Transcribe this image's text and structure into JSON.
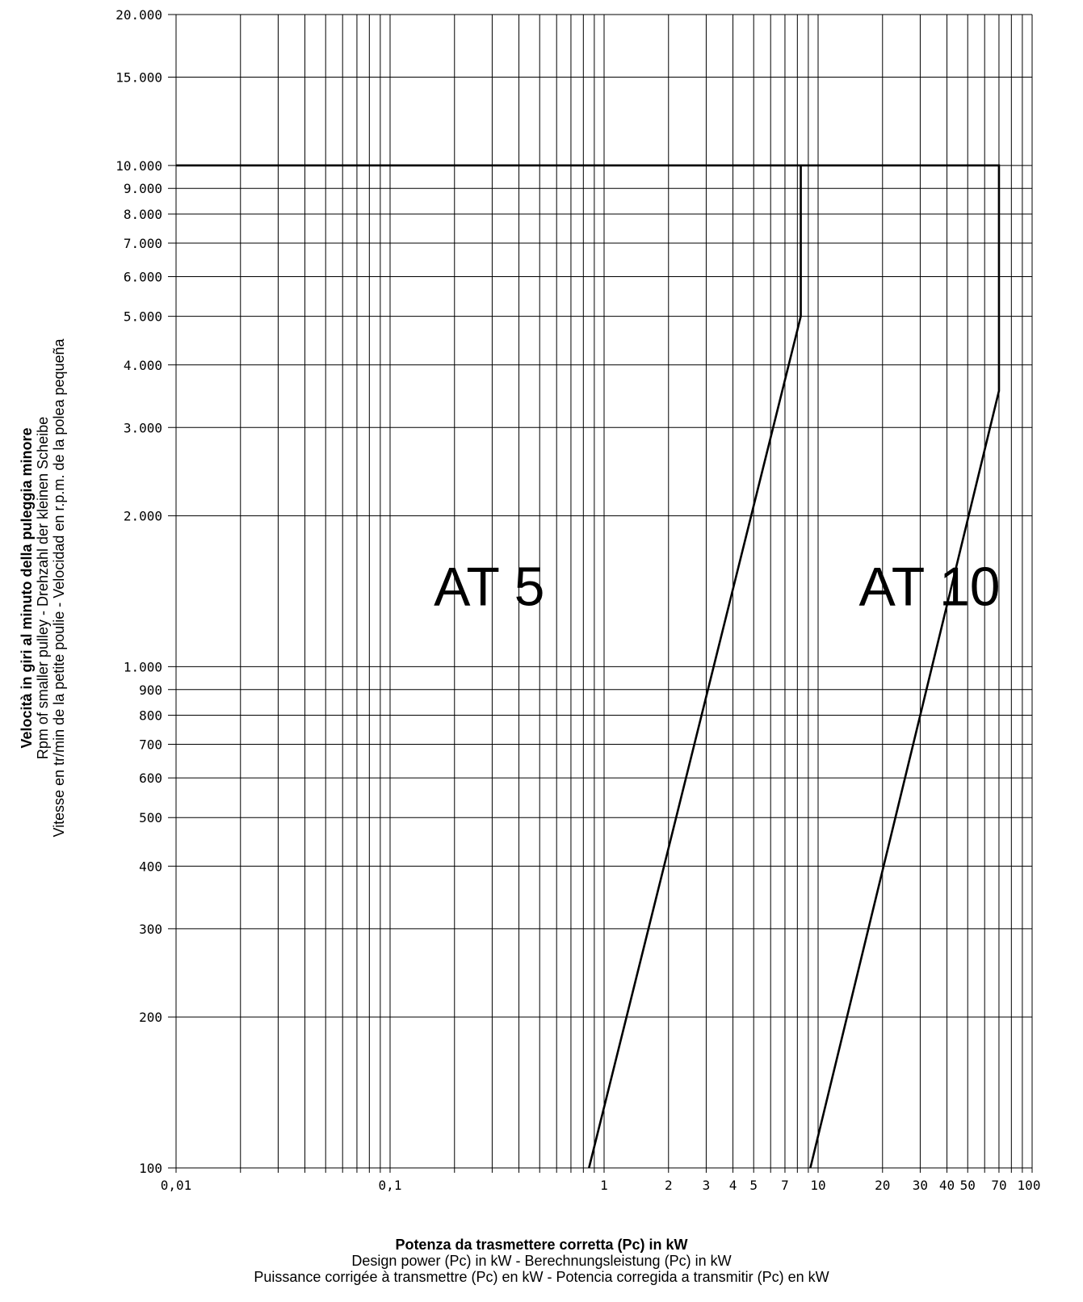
{
  "chart_data": {
    "type": "line",
    "x_scale": "log",
    "y_scale": "log",
    "xlim": [
      0.01,
      100
    ],
    "ylim": [
      100,
      20000
    ],
    "grid": true,
    "x_gridlines": [
      0.01,
      0.02,
      0.03,
      0.04,
      0.05,
      0.06,
      0.07,
      0.08,
      0.09,
      0.1,
      0.2,
      0.3,
      0.4,
      0.5,
      0.6,
      0.7,
      0.8,
      0.9,
      1,
      2,
      3,
      4,
      5,
      6,
      7,
      8,
      9,
      10,
      20,
      30,
      40,
      50,
      60,
      70,
      80,
      90,
      100
    ],
    "y_gridlines": [
      100,
      200,
      300,
      400,
      500,
      600,
      700,
      800,
      900,
      1000,
      2000,
      3000,
      4000,
      5000,
      6000,
      7000,
      8000,
      9000,
      10000,
      15000,
      20000
    ],
    "x_ticks": [
      {
        "value": 0.01,
        "label": "0,01"
      },
      {
        "value": 0.1,
        "label": "0,1"
      },
      {
        "value": 1,
        "label": "1"
      },
      {
        "value": 2,
        "label": "2"
      },
      {
        "value": 3,
        "label": "3"
      },
      {
        "value": 4,
        "label": "4"
      },
      {
        "value": 5,
        "label": "5"
      },
      {
        "value": 7,
        "label": "7"
      },
      {
        "value": 10,
        "label": "10"
      },
      {
        "value": 20,
        "label": "20"
      },
      {
        "value": 30,
        "label": "30"
      },
      {
        "value": 40,
        "label": "40"
      },
      {
        "value": 50,
        "label": "50"
      },
      {
        "value": 70,
        "label": "70"
      },
      {
        "value": 100,
        "label": "100"
      }
    ],
    "y_ticks": [
      {
        "value": 20000,
        "label": "20.000"
      },
      {
        "value": 15000,
        "label": "15.000"
      },
      {
        "value": 10000,
        "label": "10.000"
      },
      {
        "value": 9000,
        "label": "9.000"
      },
      {
        "value": 8000,
        "label": "8.000"
      },
      {
        "value": 7000,
        "label": "7.000"
      },
      {
        "value": 6000,
        "label": "6.000"
      },
      {
        "value": 5000,
        "label": "5.000"
      },
      {
        "value": 4000,
        "label": "4.000"
      },
      {
        "value": 3000,
        "label": "3.000"
      },
      {
        "value": 2000,
        "label": "2.000"
      },
      {
        "value": 1000,
        "label": "1.000"
      },
      {
        "value": 900,
        "label": "900"
      },
      {
        "value": 800,
        "label": "800"
      },
      {
        "value": 700,
        "label": "700"
      },
      {
        "value": 600,
        "label": "600"
      },
      {
        "value": 500,
        "label": "500"
      },
      {
        "value": 400,
        "label": "400"
      },
      {
        "value": 300,
        "label": "300"
      },
      {
        "value": 200,
        "label": "200"
      },
      {
        "value": 100,
        "label": "100"
      }
    ],
    "series": [
      {
        "name": "AT 5",
        "points": [
          [
            0.01,
            10000
          ],
          [
            8.3,
            10000
          ],
          [
            8.3,
            5000
          ],
          [
            0.85,
            100
          ]
        ]
      },
      {
        "name": "AT 10",
        "points": [
          [
            8.3,
            10000
          ],
          [
            70,
            10000
          ],
          [
            70,
            3550
          ],
          [
            9.2,
            100
          ]
        ]
      }
    ],
    "region_labels": [
      {
        "text": "AT 5",
        "x": 0.16,
        "y": 1450
      },
      {
        "text": "AT 10",
        "x": 15.5,
        "y": 1450
      }
    ],
    "ylabel": [
      "Velocità in giri al minuto della puleggia minore",
      "Rpm of smaller pulley  -  Drehzahl der kleinen Scheibe",
      "Vitesse en tr/min de la petite poulie  -  Velocidad en r.p.m. de la polea pequeña"
    ],
    "xlabel": [
      "Potenza da trasmettere corretta (Pc) in kW",
      "Design power (Pc) in kW  -  Berechnungsleistung (Pc) in kW",
      "Puissance corrigée à transmettre (Pc) en kW  -  Potencia corregida a transmitir (Pc) en kW"
    ]
  }
}
